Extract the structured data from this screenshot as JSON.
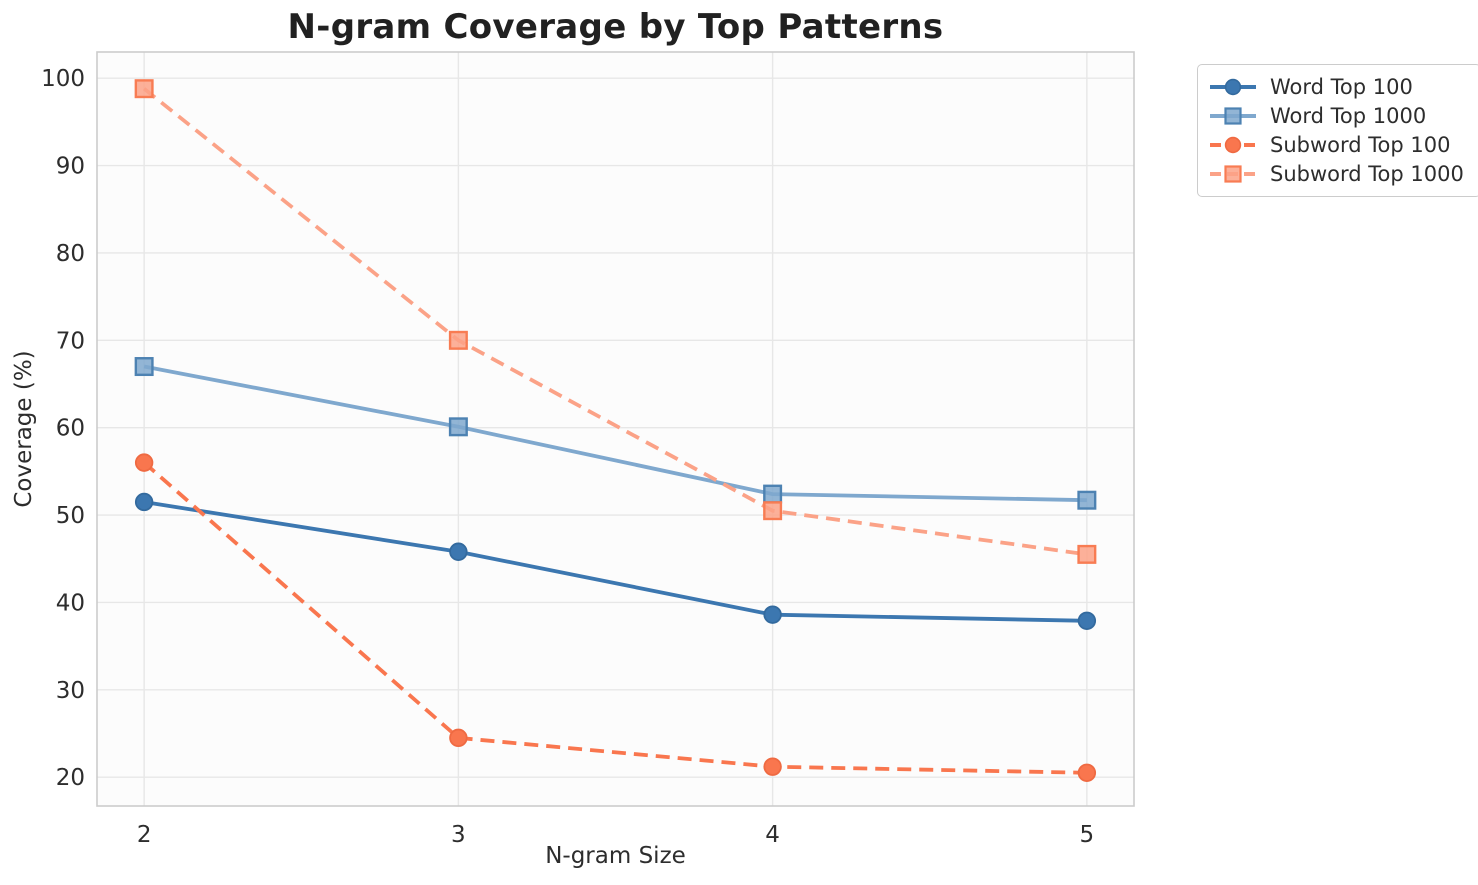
{
  "chart_data": {
    "type": "line",
    "title": "N-gram Coverage by Top Patterns",
    "xlabel": "N-gram Size",
    "ylabel": "Coverage (%)",
    "x": [
      2,
      3,
      4,
      5
    ],
    "xticks": [
      "2",
      "3",
      "4",
      "5"
    ],
    "yticks": [
      20,
      30,
      40,
      50,
      60,
      70,
      80,
      90,
      100
    ],
    "xlim": [
      1.85,
      5.15
    ],
    "ylim": [
      16.7,
      103
    ],
    "grid": true,
    "legend_position": "outside-upper-right",
    "series": [
      {
        "name": "Word Top 100",
        "values": [
          51.5,
          45.8,
          38.6,
          37.9
        ],
        "color": "#3c77b0",
        "edge": "#336a9e",
        "marker": "circle",
        "line_style": "solid"
      },
      {
        "name": "Word Top 1000",
        "values": [
          67.0,
          60.1,
          52.4,
          51.7
        ],
        "color": "#7fa8ce",
        "edge": "#4d82b2",
        "marker": "square",
        "line_style": "solid"
      },
      {
        "name": "Subword Top 100",
        "values": [
          56.0,
          24.5,
          21.2,
          20.5
        ],
        "color": "#f9764e",
        "edge": "#ef6a42",
        "marker": "circle",
        "line_style": "dashed"
      },
      {
        "name": "Subword Top 1000",
        "values": [
          98.8,
          70.0,
          50.5,
          45.5
        ],
        "color": "#fba287",
        "edge": "#f87c53",
        "marker": "square",
        "line_style": "dashed"
      }
    ],
    "style": {
      "background": "#ffffff",
      "plot_background": "#fcfcfc",
      "grid_color": "#e7e7e7",
      "spine_color": "#cccccc",
      "tick_label_color": "#2d2d2d",
      "axis_label_color": "#2d2d2d",
      "title_color": "#212121",
      "legend_border_color": "#cccccc",
      "legend_text_color": "#2d2d2d"
    }
  }
}
